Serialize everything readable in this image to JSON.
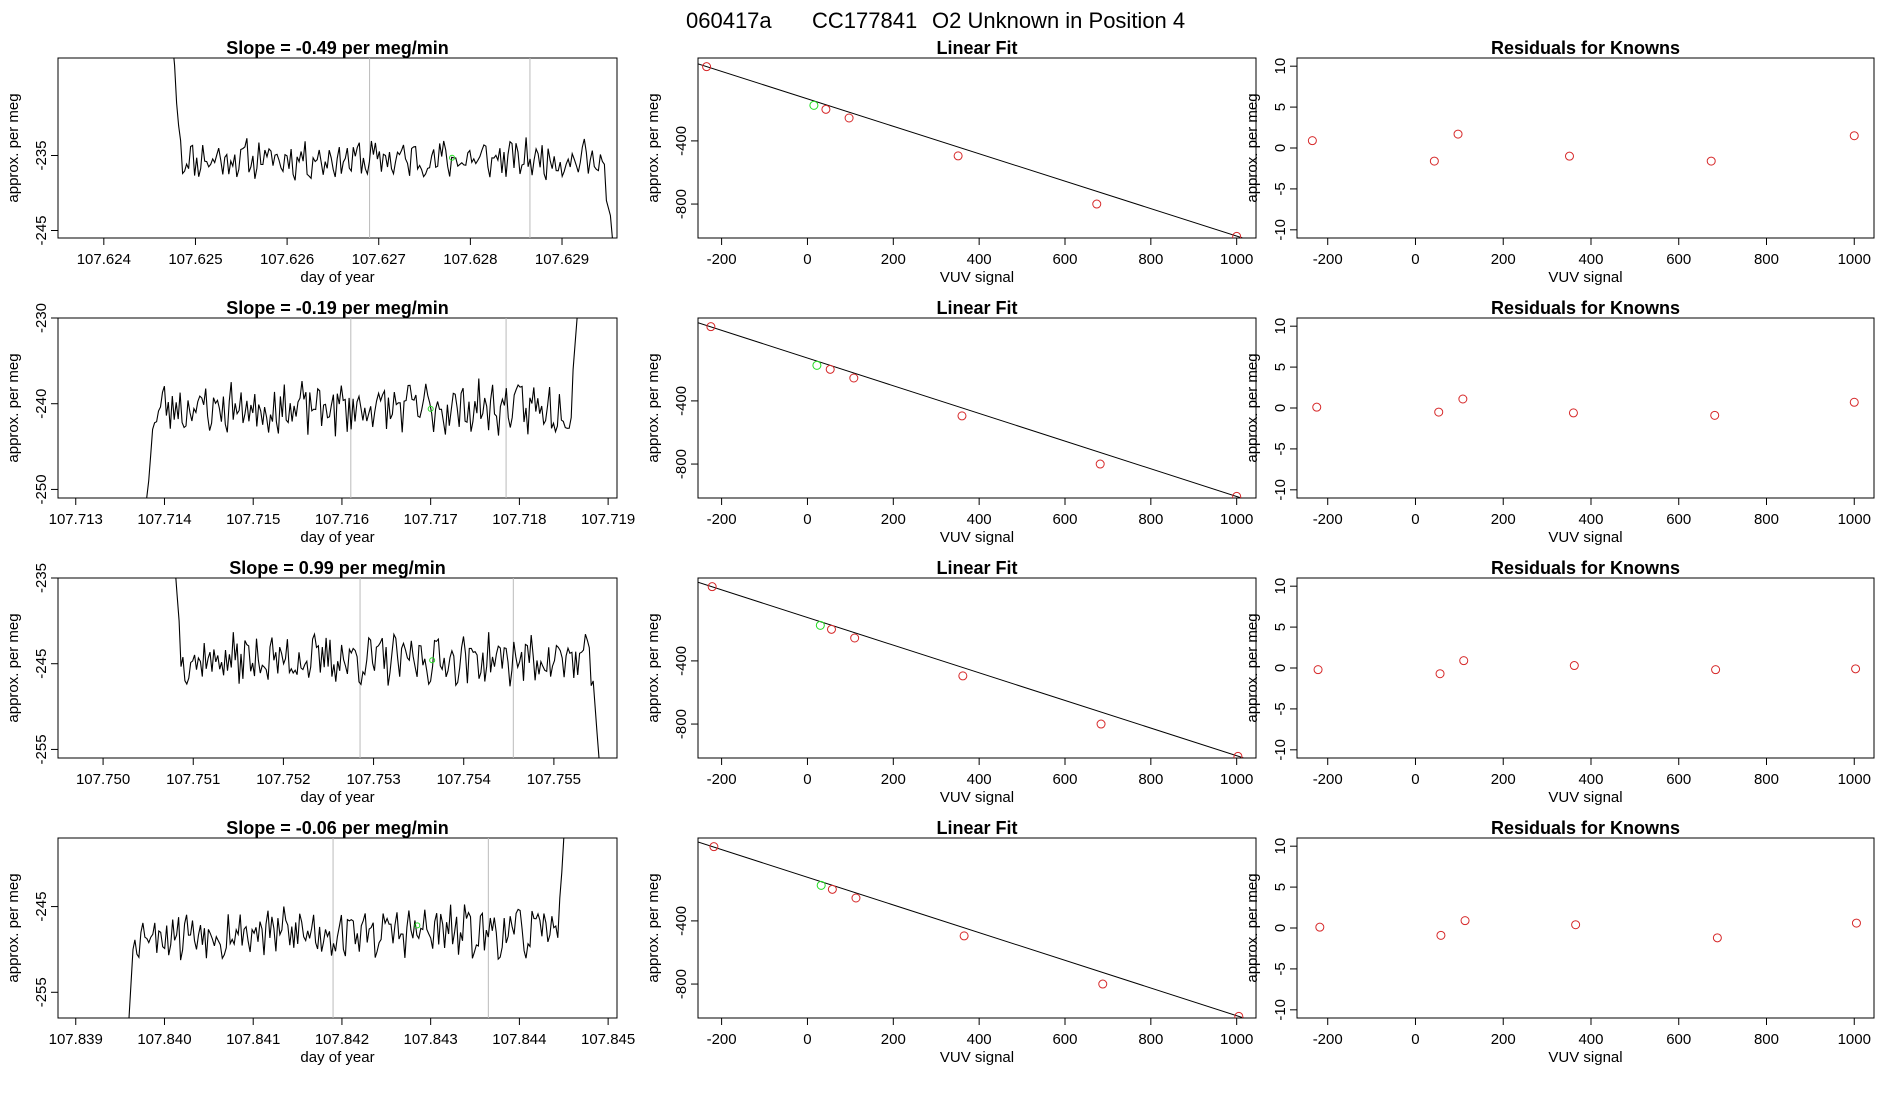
{
  "page": {
    "title_parts": [
      "060417a",
      "CC177841",
      "O2 Unknown in Position  4"
    ]
  },
  "colors": {
    "known": "#d62728",
    "unknown": "#22dd22",
    "line": "#000000",
    "vline": "#bbbbbb"
  },
  "chart_data": [
    {
      "row": 0,
      "type": "line",
      "title": "Slope =  -0.49  per meg/min",
      "xlabel": "day of year",
      "ylabel": "approx. per meg",
      "xlim": [
        107.6235,
        107.6296
      ],
      "ylim": [
        -246,
        -222
      ],
      "xticks": [
        107.624,
        107.625,
        107.626,
        107.627,
        107.628,
        107.629
      ],
      "xtick_labels": [
        "107.624",
        "107.625",
        "107.626",
        "107.627",
        "107.628",
        "107.629"
      ],
      "yticks": [
        -235,
        -245
      ],
      "ytick_labels": [
        "-235",
        "-245"
      ],
      "vlines": [
        107.6269,
        107.62865
      ],
      "series_start": 107.62475,
      "series_end": 107.62955,
      "base": -235.5,
      "amp": 2.2,
      "seed": 11,
      "head": [
        -220,
        -223,
        -228,
        -231,
        -233
      ],
      "tail": [
        -241,
        -242,
        -243,
        -246
      ],
      "unknown_point": {
        "x": 107.6278,
        "y": -235.3
      }
    },
    {
      "row": 1,
      "type": "line",
      "title": "Slope =  -0.19  per meg/min",
      "xlabel": "day of year",
      "ylabel": "approx. per meg",
      "xlim": [
        107.7128,
        107.7191
      ],
      "ylim": [
        -251,
        -230
      ],
      "xticks": [
        107.713,
        107.714,
        107.715,
        107.716,
        107.717,
        107.718,
        107.719
      ],
      "xtick_labels": [
        "107.713",
        "107.714",
        "107.715",
        "107.716",
        "107.717",
        "107.718",
        "107.719"
      ],
      "yticks": [
        -230,
        -240,
        -250
      ],
      "ytick_labels": [
        "-230",
        "-240",
        "-250"
      ],
      "vlines": [
        107.7161,
        107.71785
      ],
      "series_start": 107.7138,
      "series_end": 107.71865,
      "base": -240.5,
      "amp": 2.6,
      "seed": 23,
      "head": [
        -251,
        -249,
        -246,
        -243
      ],
      "tail": [
        -236,
        -233,
        -230
      ],
      "unknown_point": {
        "x": 107.717,
        "y": -240.6
      }
    },
    {
      "row": 2,
      "type": "line",
      "title": "Slope =  0.99  per meg/min",
      "xlabel": "day of year",
      "ylabel": "approx. per meg",
      "xlim": [
        107.7495,
        107.7557
      ],
      "ylim": [
        -256,
        -235
      ],
      "xticks": [
        107.75,
        107.751,
        107.752,
        107.753,
        107.754,
        107.755
      ],
      "xtick_labels": [
        "107.750",
        "107.751",
        "107.752",
        "107.753",
        "107.754",
        "107.755"
      ],
      "yticks": [
        -235,
        -245,
        -255
      ],
      "ytick_labels": [
        "-235",
        "-245",
        "-255"
      ],
      "vlines": [
        107.75285,
        107.75455
      ],
      "series_start": 107.7508,
      "series_end": 107.7555,
      "base": -244.5,
      "amp": 2.4,
      "seed": 37,
      "head": [
        -234,
        -237,
        -240
      ],
      "tail": [
        -247,
        -250,
        -253,
        -256
      ],
      "unknown_point": {
        "x": 107.75365,
        "y": -244.6
      }
    },
    {
      "row": 3,
      "type": "line",
      "title": "Slope =  -0.06  per meg/min",
      "xlabel": "day of year",
      "ylabel": "approx. per meg",
      "xlim": [
        107.8388,
        107.8451
      ],
      "ylim": [
        -258,
        -237
      ],
      "xticks": [
        107.839,
        107.84,
        107.841,
        107.842,
        107.843,
        107.844,
        107.845
      ],
      "xtick_labels": [
        "107.839",
        "107.840",
        "107.841",
        "107.842",
        "107.843",
        "107.844",
        "107.845"
      ],
      "yticks": [
        -245,
        -255
      ],
      "ytick_labels": [
        "-245",
        "-255"
      ],
      "vlines": [
        107.8419,
        107.84365
      ],
      "series_start": 107.8396,
      "series_end": 107.8445,
      "base": -248.0,
      "amp": 2.6,
      "seed": 53,
      "head": [
        -258,
        -254,
        -250
      ],
      "tail": [
        -244,
        -241,
        -237
      ],
      "unknown_point": {
        "x": 107.84285,
        "y": -247.2
      }
    },
    {
      "row": 0,
      "type": "scatter",
      "title": "Linear Fit",
      "xlabel": "VUV signal",
      "ylabel": "approx. per meg",
      "xlim": [
        -255,
        1045
      ],
      "ylim": [
        -1015,
        125
      ],
      "xticks": [
        -200,
        0,
        200,
        400,
        600,
        800,
        1000
      ],
      "xtick_labels": [
        "-200",
        "0",
        "200",
        "400",
        "600",
        "800",
        "1000"
      ],
      "yticks": [
        -400,
        -800
      ],
      "ytick_labels": [
        "-400",
        "-800"
      ],
      "known": {
        "x": [
          -235,
          43,
          97,
          351,
          674,
          1000
        ],
        "y": [
          70,
          -200,
          -255,
          -495,
          -800,
          -1005
        ]
      },
      "unknown": {
        "x": [
          15
        ],
        "y": [
          -175
        ]
      },
      "fit_line": {
        "x": [
          -255,
          1045
        ],
        "y": [
          88,
          -1042
        ]
      }
    },
    {
      "row": 1,
      "type": "scatter",
      "title": "Linear Fit",
      "xlabel": "VUV signal",
      "ylabel": "approx. per meg",
      "xlim": [
        -255,
        1045
      ],
      "ylim": [
        -1015,
        125
      ],
      "xticks": [
        -200,
        0,
        200,
        400,
        600,
        800,
        1000
      ],
      "xtick_labels": [
        "-200",
        "0",
        "200",
        "400",
        "600",
        "800",
        "1000"
      ],
      "yticks": [
        -400,
        -800
      ],
      "ytick_labels": [
        "-400",
        "-800"
      ],
      "known": {
        "x": [
          -225,
          53,
          108,
          360,
          682,
          1000
        ],
        "y": [
          70,
          -200,
          -255,
          -495,
          -800,
          -1005
        ]
      },
      "unknown": {
        "x": [
          22
        ],
        "y": [
          -175
        ]
      },
      "fit_line": {
        "x": [
          -255,
          1045
        ],
        "y": [
          95,
          -1045
        ]
      }
    },
    {
      "row": 2,
      "type": "scatter",
      "title": "Linear Fit",
      "xlabel": "VUV signal",
      "ylabel": "approx. per meg",
      "xlim": [
        -255,
        1045
      ],
      "ylim": [
        -1015,
        125
      ],
      "xticks": [
        -200,
        0,
        200,
        400,
        600,
        800,
        1000
      ],
      "xtick_labels": [
        "-200",
        "0",
        "200",
        "400",
        "600",
        "800",
        "1000"
      ],
      "yticks": [
        -400,
        -800
      ],
      "ytick_labels": [
        "-400",
        "-800"
      ],
      "known": {
        "x": [
          -222,
          56,
          110,
          362,
          684,
          1003
        ],
        "y": [
          70,
          -200,
          -255,
          -495,
          -800,
          -1005
        ]
      },
      "unknown": {
        "x": [
          30
        ],
        "y": [
          -175
        ]
      },
      "fit_line": {
        "x": [
          -255,
          1045
        ],
        "y": [
          98,
          -1040
        ]
      }
    },
    {
      "row": 3,
      "type": "scatter",
      "title": "Linear Fit",
      "xlabel": "VUV signal",
      "ylabel": "approx. per meg",
      "xlim": [
        -255,
        1045
      ],
      "ylim": [
        -1015,
        125
      ],
      "xticks": [
        -200,
        0,
        200,
        400,
        600,
        800,
        1000
      ],
      "xtick_labels": [
        "-200",
        "0",
        "200",
        "400",
        "600",
        "800",
        "1000"
      ],
      "yticks": [
        -400,
        -800
      ],
      "ytick_labels": [
        "-400",
        "-800"
      ],
      "known": {
        "x": [
          -218,
          58,
          113,
          365,
          688,
          1005
        ],
        "y": [
          70,
          -200,
          -255,
          -495,
          -800,
          -1005
        ]
      },
      "unknown": {
        "x": [
          32
        ],
        "y": [
          -175
        ]
      },
      "fit_line": {
        "x": [
          -255,
          1045
        ],
        "y": [
          100,
          -1040
        ]
      }
    },
    {
      "row": 0,
      "type": "scatter",
      "title": "Residuals for Knowns",
      "xlabel": "VUV signal",
      "ylabel": "approx. per meg",
      "xlim": [
        -270,
        1045
      ],
      "ylim": [
        -11,
        11
      ],
      "xticks": [
        -200,
        0,
        200,
        400,
        600,
        800,
        1000
      ],
      "xtick_labels": [
        "-200",
        "0",
        "200",
        "400",
        "600",
        "800",
        "1000"
      ],
      "yticks": [
        10,
        5,
        0,
        -5,
        -10
      ],
      "ytick_labels": [
        "10",
        "5",
        "0",
        "-5",
        "-10"
      ],
      "known": {
        "x": [
          -235,
          43,
          97,
          351,
          674,
          1000
        ],
        "y": [
          0.9,
          -1.6,
          1.7,
          -1.0,
          -1.6,
          1.5
        ]
      }
    },
    {
      "row": 1,
      "type": "scatter",
      "title": "Residuals for Knowns",
      "xlabel": "VUV signal",
      "ylabel": "approx. per meg",
      "xlim": [
        -270,
        1045
      ],
      "ylim": [
        -11,
        11
      ],
      "xticks": [
        -200,
        0,
        200,
        400,
        600,
        800,
        1000
      ],
      "xtick_labels": [
        "-200",
        "0",
        "200",
        "400",
        "600",
        "800",
        "1000"
      ],
      "yticks": [
        10,
        5,
        0,
        -5,
        -10
      ],
      "ytick_labels": [
        "10",
        "5",
        "0",
        "-5",
        "-10"
      ],
      "known": {
        "x": [
          -225,
          53,
          108,
          360,
          682,
          1000
        ],
        "y": [
          0.1,
          -0.5,
          1.1,
          -0.6,
          -0.9,
          0.7
        ]
      }
    },
    {
      "row": 2,
      "type": "scatter",
      "title": "Residuals for Knowns",
      "xlabel": "VUV signal",
      "ylabel": "approx. per meg",
      "xlim": [
        -270,
        1045
      ],
      "ylim": [
        -11,
        11
      ],
      "xticks": [
        -200,
        0,
        200,
        400,
        600,
        800,
        1000
      ],
      "xtick_labels": [
        "-200",
        "0",
        "200",
        "400",
        "600",
        "800",
        "1000"
      ],
      "yticks": [
        10,
        5,
        0,
        -5,
        -10
      ],
      "ytick_labels": [
        "10",
        "5",
        "0",
        "-5",
        "-10"
      ],
      "known": {
        "x": [
          -222,
          56,
          110,
          362,
          684,
          1003
        ],
        "y": [
          -0.2,
          -0.7,
          0.9,
          0.3,
          -0.2,
          -0.1
        ]
      }
    },
    {
      "row": 3,
      "type": "scatter",
      "title": "Residuals for Knowns",
      "xlabel": "VUV signal",
      "ylabel": "approx. per meg",
      "xlim": [
        -270,
        1045
      ],
      "ylim": [
        -11,
        11
      ],
      "xticks": [
        -200,
        0,
        200,
        400,
        600,
        800,
        1000
      ],
      "xtick_labels": [
        "-200",
        "0",
        "200",
        "400",
        "600",
        "800",
        "1000"
      ],
      "yticks": [
        10,
        5,
        0,
        -5,
        -10
      ],
      "ytick_labels": [
        "10",
        "5",
        "0",
        "-5",
        "-10"
      ],
      "known": {
        "x": [
          -218,
          58,
          113,
          365,
          688,
          1005
        ],
        "y": [
          0.1,
          -0.9,
          0.9,
          0.4,
          -1.2,
          0.6
        ]
      }
    }
  ]
}
